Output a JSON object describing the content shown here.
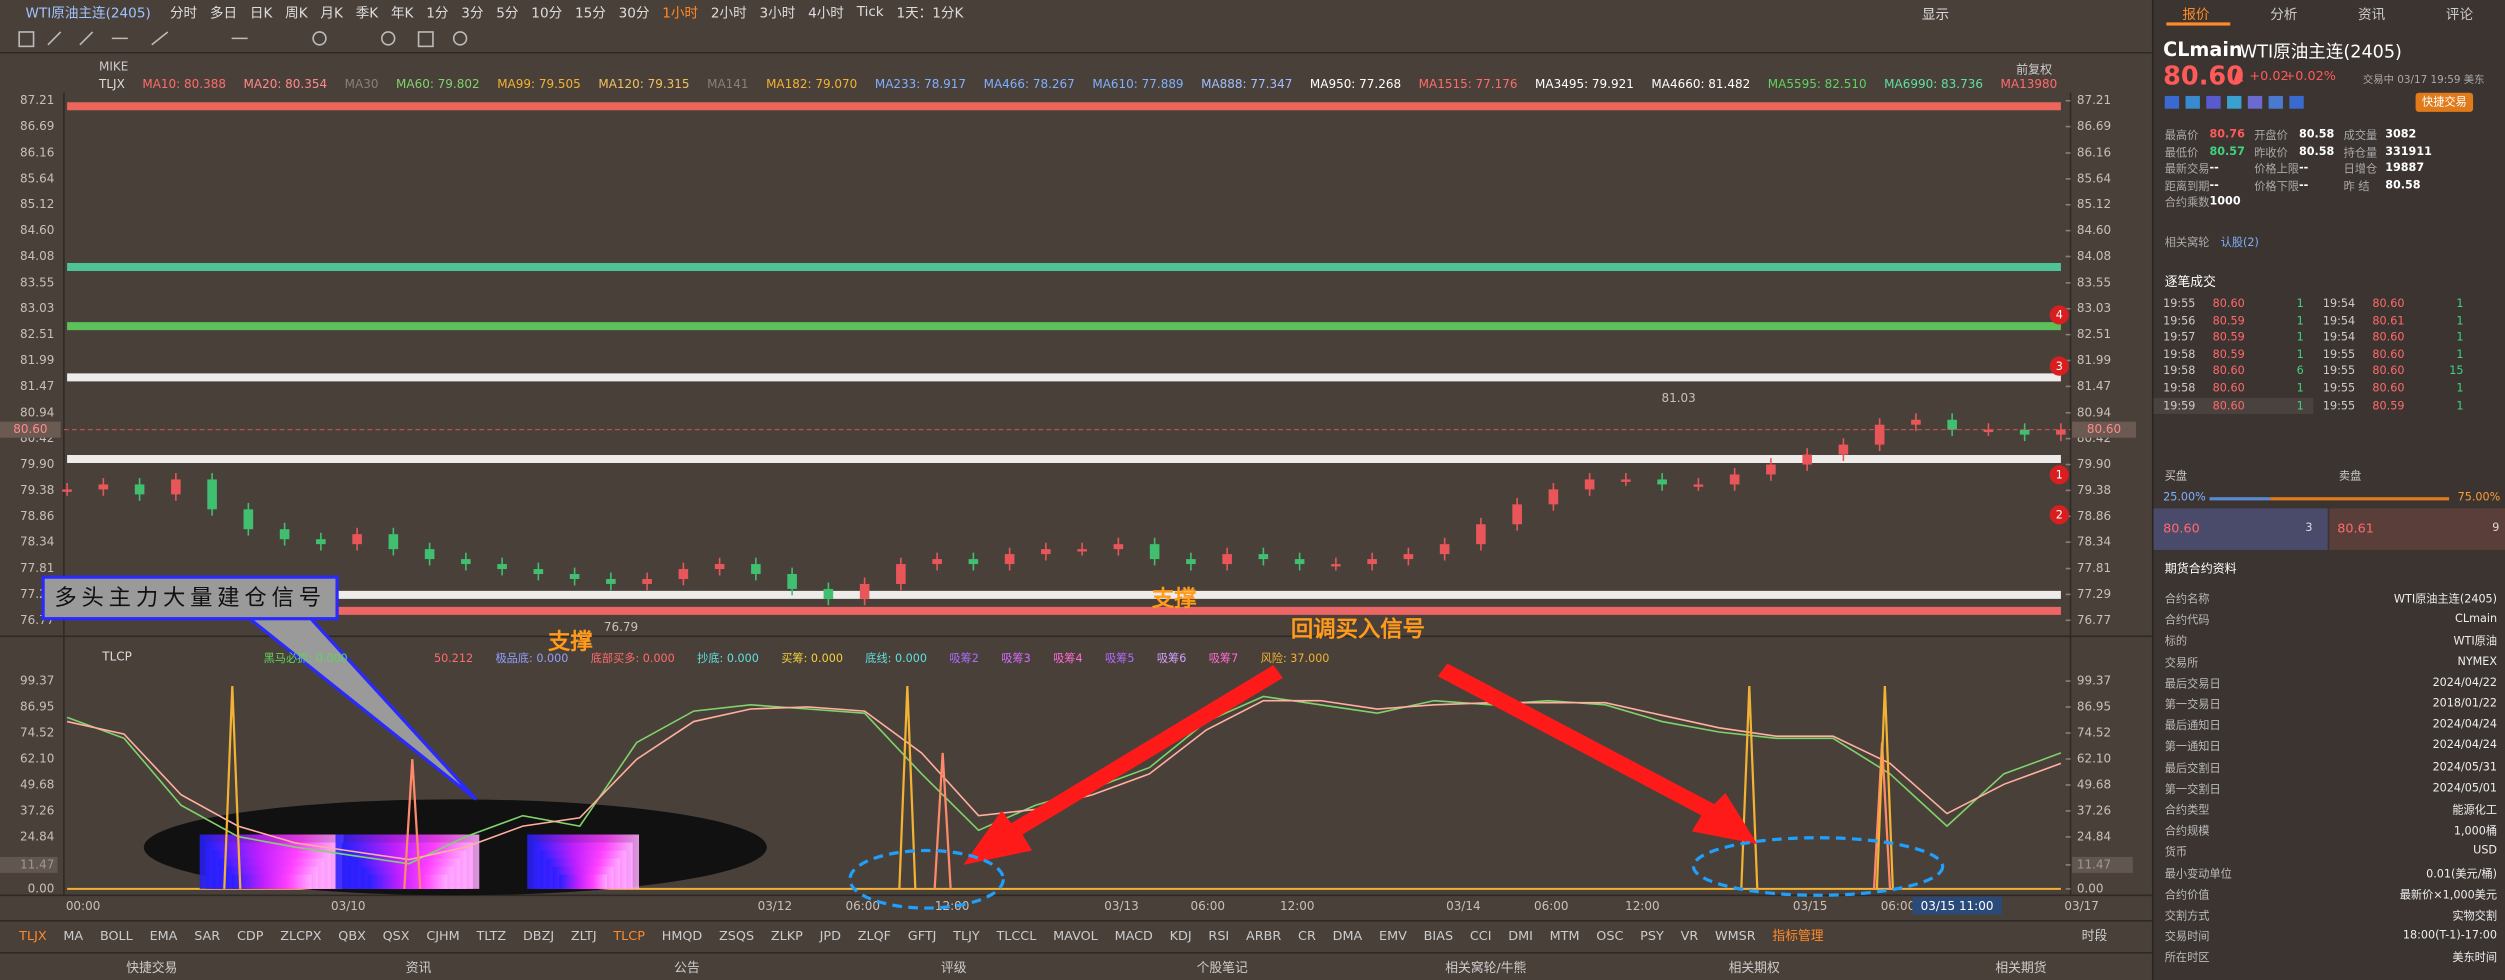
{
  "header": {
    "symbol": "WTI原油主连(2405)",
    "periods": [
      "分时",
      "多日",
      "日K",
      "周K",
      "月K",
      "季K",
      "年K",
      "1分",
      "3分",
      "5分",
      "10分",
      "15分",
      "30分",
      "1小时",
      "2小时",
      "3小时",
      "4小时",
      "Tick",
      "1天：1分K"
    ],
    "active_period": 13,
    "display": "显示"
  },
  "ma_legend": {
    "indicator": "MIKE",
    "name": "TLJX",
    "adjust": "前复权",
    "items": [
      {
        "label": "MA10: 80.388",
        "color": "#ff6b6b"
      },
      {
        "label": "MA20: 80.354",
        "color": "#ff8a8a"
      },
      {
        "label": "MA30",
        "color": "#8a807a"
      },
      {
        "label": "MA60: 79.802",
        "color": "#7fd36b"
      },
      {
        "label": "MA99: 79.505",
        "color": "#f2b233"
      },
      {
        "label": "MA120: 79.315",
        "color": "#f2c060"
      },
      {
        "label": "MA141",
        "color": "#8a807a"
      },
      {
        "label": "MA182: 79.070",
        "color": "#f2b233"
      },
      {
        "label": "MA233: 78.917",
        "color": "#7fb0ff"
      },
      {
        "label": "MA466: 78.267",
        "color": "#7fb0ff"
      },
      {
        "label": "MA610: 77.889",
        "color": "#7fb0ff"
      },
      {
        "label": "MA888: 77.347",
        "color": "#a0c0ff"
      },
      {
        "label": "MA950: 77.268",
        "color": "#ffffff"
      },
      {
        "label": "MA1515: 77.176",
        "color": "#ff6b6b"
      },
      {
        "label": "MA3495: 79.921",
        "color": "#ffffff"
      },
      {
        "label": "MA4660: 81.482",
        "color": "#ffffff"
      },
      {
        "label": "MA5595: 82.510",
        "color": "#5fd35f"
      },
      {
        "label": "MA6990: 83.736",
        "color": "#5fe0a0"
      },
      {
        "label": "MA13980",
        "color": "#ff6b6b"
      }
    ]
  },
  "price_chart": {
    "ylim": [
      76.77,
      87.21
    ],
    "yticks": [
      87.21,
      86.69,
      86.16,
      85.64,
      85.12,
      {
        "value": 84.6,
        "label": "84.60"
      },
      84.08,
      83.55,
      83.03,
      82.51,
      81.99,
      81.47,
      80.94,
      80.42,
      {
        "value": 79.9,
        "label": "79.90"
      },
      79.38,
      78.86,
      78.34,
      77.81,
      77.29,
      76.77
    ],
    "current_price": {
      "value": 80.6,
      "label": "80.60"
    },
    "high": 81.03,
    "low": 76.79,
    "closes": [
      79.4,
      79.5,
      79.3,
      79.6,
      79.0,
      78.6,
      78.4,
      78.3,
      78.5,
      78.2,
      78.0,
      77.9,
      77.8,
      77.7,
      77.6,
      77.5,
      77.6,
      77.8,
      77.9,
      77.7,
      77.4,
      77.2,
      77.5,
      77.9,
      78.0,
      77.9,
      78.1,
      78.2,
      78.2,
      78.3,
      78.0,
      77.9,
      78.1,
      78.0,
      77.9,
      77.9,
      78.0,
      78.1,
      78.3,
      78.7,
      79.1,
      79.4,
      79.6,
      79.6,
      79.5,
      79.5,
      79.7,
      79.9,
      80.1,
      80.3,
      80.7,
      80.8,
      80.6,
      80.6,
      80.5,
      80.6
    ],
    "up_color": "#e8565a",
    "down_color": "#3fbf6f",
    "levels": [
      {
        "value": 87.1,
        "color": "#ff6b60"
      },
      {
        "value": 83.87,
        "color": "#4fd3a0"
      },
      {
        "value": 82.68,
        "color": "#5fcf5f"
      },
      {
        "value": 81.65,
        "color": "#ffffff"
      },
      {
        "value": 80.01,
        "color": "#ffffff"
      },
      {
        "value": 77.28,
        "color": "#ffffff"
      },
      {
        "value": 76.96,
        "color": "#ff6b6b"
      }
    ],
    "markers": [
      "4",
      "3",
      "1",
      "2"
    ]
  },
  "indicator": {
    "name": "TLCP",
    "ylim": [
      0,
      99.37
    ],
    "yticks": [
      99.37,
      86.95,
      74.52,
      {
        "value": 62.1,
        "label": "62.10"
      },
      49.68,
      37.26,
      24.84,
      11.47,
      {
        "value": 0,
        "label": "0.00"
      }
    ],
    "legend": [
      {
        "label": "黑马必抓: 0.000",
        "color": "#5fd35f"
      },
      {
        "label": "50.212",
        "color": "#ff6b6b"
      },
      {
        "label": "极品底: 0.000",
        "color": "#8fa0ff"
      },
      {
        "label": "底部买多: 0.000",
        "color": "#ff6b6b"
      },
      {
        "label": "抄底: 0.000",
        "color": "#5fe0e0"
      },
      {
        "label": "买筹: 0.000",
        "color": "#f2d23a"
      },
      {
        "label": "底线: 0.000",
        "color": "#5fe0e0"
      },
      {
        "label": "吸筹2",
        "color": "#b06bff"
      },
      {
        "label": "吸筹3",
        "color": "#d36bff"
      },
      {
        "label": "吸筹4",
        "color": "#ff6bd3"
      },
      {
        "label": "吸筹5",
        "color": "#b06bff"
      },
      {
        "label": "吸筹6",
        "color": "#d3a0ff"
      },
      {
        "label": "吸筹7",
        "color": "#ff6bd3"
      },
      {
        "label": "风险: 37.000",
        "color": "#f2b233"
      }
    ],
    "series": [
      {
        "color": "#7fd36b",
        "values": [
          82,
          72,
          40,
          25,
          20,
          16,
          12,
          25,
          35,
          30,
          70,
          85,
          88,
          86,
          84,
          55,
          28,
          40,
          48,
          58,
          80,
          92,
          88,
          84,
          90,
          88,
          90,
          88,
          80,
          75,
          72,
          72,
          55,
          30,
          55,
          65
        ]
      },
      {
        "color": "#ffb0a0",
        "values": [
          80,
          74,
          45,
          30,
          22,
          18,
          14,
          20,
          30,
          34,
          62,
          80,
          86,
          87,
          85,
          65,
          35,
          38,
          45,
          55,
          76,
          90,
          90,
          86,
          88,
          89,
          89,
          89,
          83,
          77,
          73,
          73,
          60,
          36,
          50,
          60
        ]
      }
    ],
    "spikes": [
      {
        "x": 2.9,
        "value": 97,
        "color": "#f2b233"
      },
      {
        "x": 6.06,
        "value": 62,
        "color": "#ff8a6a"
      },
      {
        "x": 14.75,
        "value": 97,
        "color": "#f2b233"
      },
      {
        "x": 15.37,
        "value": 65,
        "color": "#ff8a6a"
      },
      {
        "x": 29.53,
        "value": 97,
        "color": "#f2b233"
      },
      {
        "x": 31.86,
        "value": 70,
        "color": "#ff8a6a"
      },
      {
        "x": 31.91,
        "value": 97,
        "color": "#f2b233"
      }
    ]
  },
  "time_axis": [
    "00:00",
    "03/10",
    "03/12",
    "06:00",
    "12:00",
    "03/13",
    "06:00",
    "12:00",
    "03/14",
    "06:00",
    "12:00",
    "03/15",
    "06:00",
    "03/15 11:00",
    "03/17"
  ],
  "annotations": {
    "signal_box": "多头主力大量建仓信号",
    "support_1": "支撑",
    "support_2": "支撑",
    "pullback": "回调买入信号"
  },
  "indicator_tabs": [
    "TLJX",
    "MA",
    "BOLL",
    "EMA",
    "SAR",
    "CDP",
    "ZLCPX",
    "QBX",
    "QSX",
    "CJHM",
    "TLTZ",
    "DBZJ",
    "ZLTJ",
    "TLCP",
    "HMQD",
    "ZSQS",
    "ZLKP",
    "JPD",
    "ZLQF",
    "GFTJ",
    "TLJY",
    "TLCCL",
    "MAVOL",
    "MACD",
    "KDJ",
    "RSI",
    "ARBR",
    "CR",
    "DMA",
    "EMV",
    "BIAS",
    "CCI",
    "DMI",
    "MTM",
    "OSC",
    "PSY",
    "VR",
    "WMSR",
    "指标管理"
  ],
  "period_tab": "时段",
  "bottom_bar": [
    "快捷交易",
    "资讯",
    "公告",
    "评级",
    "个股笔记",
    "相关窝轮/牛熊",
    "相关期权",
    "相关期货"
  ],
  "panel": {
    "tabs": [
      "报价",
      "分析",
      "资讯",
      "评论"
    ],
    "code": "CLmain",
    "name": "WTI原油主连(2405)",
    "price": "80.60",
    "change": "+0.02",
    "change_pct": "+0.02%",
    "status": "交易中 03/17 19:59 美东",
    "quick_trade": "快捷交易",
    "quote": [
      [
        [
          "最高价",
          "80.76"
        ],
        [
          "开盘价",
          "80.58"
        ],
        [
          "成交量",
          "3082"
        ]
      ],
      [
        [
          "最低价",
          "80.57"
        ],
        [
          "昨收价",
          "80.58"
        ],
        [
          "持仓量",
          "331911"
        ]
      ],
      [
        [
          "最新交易",
          "--"
        ],
        [
          "价格上限",
          "--"
        ],
        [
          "日增仓",
          "19887"
        ]
      ],
      [
        [
          "距离到期",
          "--"
        ],
        [
          "价格下限",
          "--"
        ],
        [
          "昨 结",
          "80.58"
        ]
      ],
      [
        [
          "合约乘数",
          "1000"
        ]
      ]
    ],
    "related": "相关窝轮",
    "related_link": "认股(2)",
    "trades_title": "逐笔成交",
    "trades_left": [
      [
        "19:55",
        "80.60",
        "1"
      ],
      [
        "19:56",
        "80.59",
        "1"
      ],
      [
        "19:57",
        "80.59",
        "1"
      ],
      [
        "19:58",
        "80.59",
        "1"
      ],
      [
        "19:58",
        "80.60",
        "6"
      ],
      [
        "19:58",
        "80.60",
        "1"
      ],
      [
        "19:59",
        "80.60",
        "1"
      ]
    ],
    "trades_right": [
      [
        "19:54",
        "80.60",
        "1"
      ],
      [
        "19:54",
        "80.61",
        "1"
      ],
      [
        "19:54",
        "80.60",
        "1"
      ],
      [
        "19:55",
        "80.60",
        "1"
      ],
      [
        "19:55",
        "80.60",
        "15"
      ],
      [
        "19:55",
        "80.60",
        "1"
      ],
      [
        "19:55",
        "80.59",
        "1"
      ]
    ],
    "book": {
      "bid_title": "买盘",
      "ask_title": "卖盘",
      "bid_pct": {
        "value": 25,
        "label": "25.00%"
      },
      "ask_pct": {
        "value": 75,
        "label": "75.00%"
      },
      "bid": "80.60",
      "bid_qty": "3",
      "ask": "80.61",
      "ask_qty": "9"
    },
    "info_title": "期货合约资料",
    "info": [
      [
        "合约名称",
        "WTI原油主连(2405)"
      ],
      [
        "合约代码",
        "CLmain"
      ],
      [
        "标的",
        "WTI原油"
      ],
      [
        "交易所",
        "NYMEX"
      ],
      [
        "最后交易日",
        "2024/04/22"
      ],
      [
        "第一交易日",
        "2018/01/22"
      ],
      [
        "最后通知日",
        "2024/04/24"
      ],
      [
        "第一通知日",
        "2024/04/24"
      ],
      [
        "最后交割日",
        "2024/05/31"
      ],
      [
        "第一交割日",
        "2024/05/01"
      ],
      [
        "合约类型",
        "能源化工"
      ],
      [
        "合约规模",
        "1,000桶"
      ],
      [
        "货币",
        "USD"
      ],
      [
        "最小变动单位",
        "0.01(美元/桶)"
      ],
      [
        "合约价值",
        "最新价×1,000美元"
      ],
      [
        "交割方式",
        "实物交割"
      ],
      [
        "交易时间",
        "18:00(T-1)-17:00"
      ],
      [
        "所在时区",
        "美东时间"
      ]
    ]
  }
}
